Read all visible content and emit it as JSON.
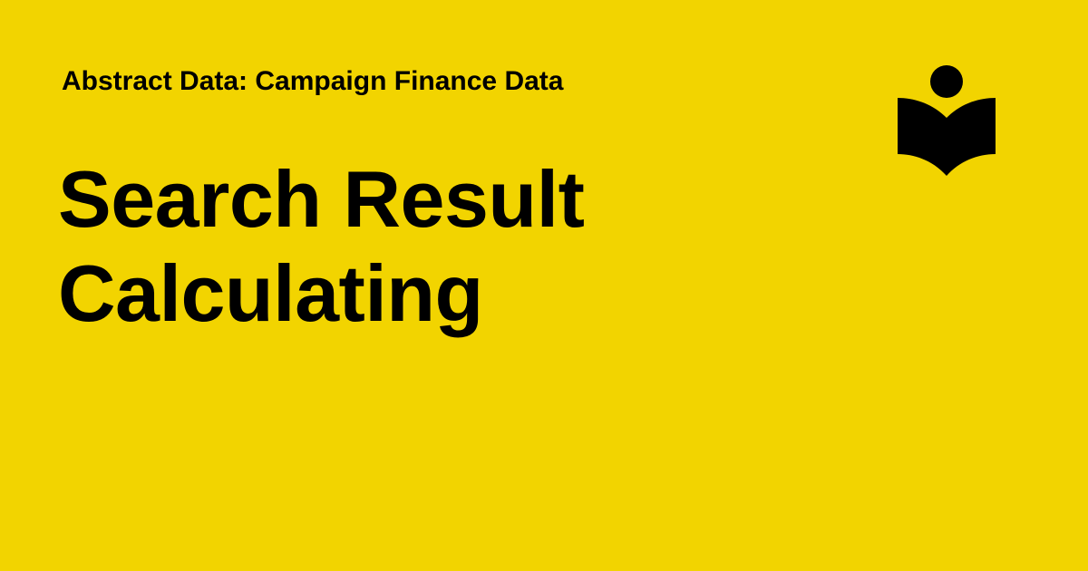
{
  "theme": {
    "background": "#F2D400",
    "foreground": "#000000"
  },
  "header": {
    "eyebrow": "Abstract Data: Campaign Finance Data"
  },
  "headline": {
    "lines": [
      "Search Result",
      "Calculating"
    ]
  },
  "brand": {
    "icon": "reader-book-icon"
  }
}
